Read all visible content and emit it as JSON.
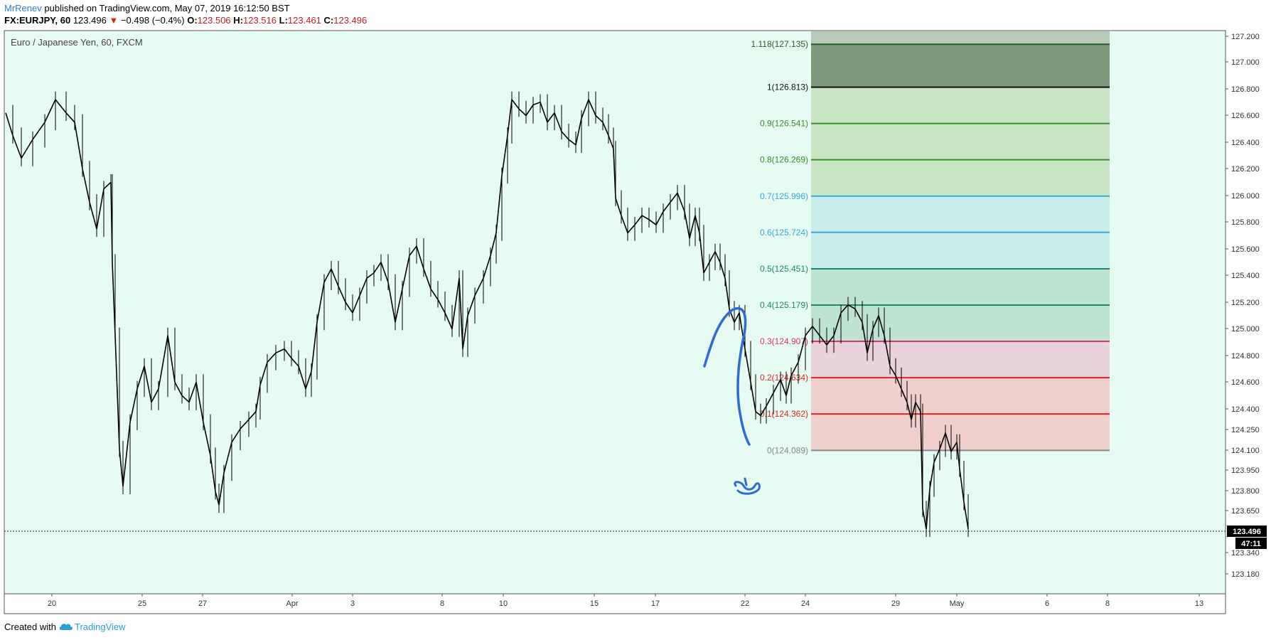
{
  "header": {
    "user": "MrRenev",
    "published": "published on TradingView.com, May 07, 2019 16:12:50 BST",
    "symbol": "FX:EURJPY, 60",
    "last": "123.496",
    "down_arrow": "▼",
    "change": "−0.498 (−0.4%)",
    "o_label": "O:",
    "o_value": "123.506",
    "h_label": "H:",
    "h_value": "123.516",
    "l_label": "L:",
    "l_value": "123.461",
    "c_label": "C:",
    "c_value": "123.496"
  },
  "footer": {
    "created_with": "Created with",
    "brand": "TradingView",
    "logo_icon": "tradingview-cloud-icon"
  },
  "colors": {
    "plot_bg": "#e6fbf2",
    "candle": "#000000",
    "user_link": "#2a7de1",
    "down": "#e01b1b",
    "drawing": "#2e6bd6"
  },
  "chart_data": {
    "type": "candlestick",
    "title": "Euro / Japanese Yen, 60, FXCM",
    "xlabel": "",
    "ylabel": "",
    "ylim": [
      123.05,
      127.25
    ],
    "x_ticks": [
      "20",
      "25",
      "27",
      "Apr",
      "3",
      "8",
      "10",
      "15",
      "17",
      "22",
      "24",
      "29",
      "May",
      "6",
      "8",
      "13"
    ],
    "y_ticks": [
      "127.200",
      "127.000",
      "126.800",
      "126.600",
      "126.400",
      "126.200",
      "126.000",
      "125.800",
      "125.600",
      "125.400",
      "125.200",
      "125.000",
      "124.800",
      "124.600",
      "124.400",
      "124.250",
      "124.100",
      "123.950",
      "123.800",
      "123.650",
      "123.340",
      "123.180"
    ],
    "last_price": "123.496",
    "countdown": "47:11",
    "price_path": [
      [
        0,
        126.62
      ],
      [
        10,
        126.45
      ],
      [
        22,
        126.28
      ],
      [
        38,
        126.42
      ],
      [
        55,
        126.55
      ],
      [
        70,
        126.72
      ],
      [
        85,
        126.62
      ],
      [
        97,
        126.55
      ],
      [
        108,
        126.2
      ],
      [
        118,
        125.95
      ],
      [
        128,
        125.75
      ],
      [
        138,
        126.05
      ],
      [
        148,
        126.1
      ],
      [
        150,
        125.5
      ],
      [
        154,
        124.95
      ],
      [
        160,
        124.1
      ],
      [
        165,
        123.82
      ],
      [
        175,
        124.3
      ],
      [
        185,
        124.55
      ],
      [
        195,
        124.72
      ],
      [
        205,
        124.45
      ],
      [
        215,
        124.55
      ],
      [
        228,
        124.95
      ],
      [
        238,
        124.6
      ],
      [
        248,
        124.5
      ],
      [
        258,
        124.45
      ],
      [
        268,
        124.6
      ],
      [
        278,
        124.3
      ],
      [
        288,
        124.05
      ],
      [
        295,
        123.78
      ],
      [
        300,
        123.68
      ],
      [
        307,
        123.92
      ],
      [
        318,
        124.15
      ],
      [
        330,
        124.25
      ],
      [
        342,
        124.32
      ],
      [
        352,
        124.38
      ],
      [
        358,
        124.58
      ],
      [
        368,
        124.75
      ],
      [
        380,
        124.82
      ],
      [
        392,
        124.85
      ],
      [
        402,
        124.78
      ],
      [
        412,
        124.72
      ],
      [
        422,
        124.55
      ],
      [
        430,
        124.68
      ],
      [
        438,
        125.05
      ],
      [
        448,
        125.35
      ],
      [
        458,
        125.45
      ],
      [
        468,
        125.32
      ],
      [
        478,
        125.2
      ],
      [
        488,
        125.12
      ],
      [
        498,
        125.25
      ],
      [
        508,
        125.38
      ],
      [
        518,
        125.42
      ],
      [
        528,
        125.5
      ],
      [
        538,
        125.35
      ],
      [
        548,
        125.05
      ],
      [
        558,
        125.3
      ],
      [
        568,
        125.55
      ],
      [
        578,
        125.62
      ],
      [
        588,
        125.45
      ],
      [
        598,
        125.3
      ],
      [
        608,
        125.22
      ],
      [
        618,
        125.12
      ],
      [
        628,
        125.0
      ],
      [
        638,
        125.38
      ],
      [
        643,
        124.85
      ],
      [
        650,
        125.1
      ],
      [
        660,
        125.25
      ],
      [
        672,
        125.38
      ],
      [
        682,
        125.55
      ],
      [
        690,
        125.72
      ],
      [
        698,
        126.15
      ],
      [
        706,
        126.45
      ],
      [
        712,
        126.72
      ],
      [
        722,
        126.65
      ],
      [
        732,
        126.6
      ],
      [
        742,
        126.68
      ],
      [
        752,
        126.7
      ],
      [
        762,
        126.55
      ],
      [
        772,
        126.62
      ],
      [
        782,
        126.48
      ],
      [
        792,
        126.42
      ],
      [
        802,
        126.38
      ],
      [
        810,
        126.58
      ],
      [
        820,
        126.72
      ],
      [
        830,
        126.6
      ],
      [
        840,
        126.55
      ],
      [
        848,
        126.45
      ],
      [
        855,
        126.35
      ],
      [
        858,
        125.98
      ],
      [
        866,
        125.85
      ],
      [
        875,
        125.72
      ],
      [
        885,
        125.78
      ],
      [
        895,
        125.85
      ],
      [
        905,
        125.82
      ],
      [
        915,
        125.78
      ],
      [
        925,
        125.88
      ],
      [
        935,
        125.95
      ],
      [
        945,
        126.02
      ],
      [
        955,
        125.88
      ],
      [
        962,
        125.68
      ],
      [
        970,
        125.85
      ],
      [
        976,
        125.72
      ],
      [
        982,
        125.42
      ],
      [
        990,
        125.5
      ],
      [
        998,
        125.58
      ],
      [
        1005,
        125.5
      ],
      [
        1012,
        125.38
      ],
      [
        1018,
        125.15
      ],
      [
        1025,
        125.05
      ],
      [
        1032,
        125.12
      ],
      [
        1040,
        124.85
      ],
      [
        1048,
        124.6
      ],
      [
        1055,
        124.38
      ],
      [
        1062,
        124.35
      ],
      [
        1070,
        124.42
      ],
      [
        1080,
        124.52
      ],
      [
        1090,
        124.62
      ],
      [
        1098,
        124.5
      ],
      [
        1105,
        124.65
      ],
      [
        1115,
        124.75
      ],
      [
        1125,
        124.95
      ],
      [
        1135,
        125.02
      ],
      [
        1145,
        124.95
      ],
      [
        1155,
        124.88
      ],
      [
        1165,
        124.95
      ],
      [
        1175,
        125.12
      ],
      [
        1185,
        125.18
      ],
      [
        1195,
        125.15
      ],
      [
        1205,
        125.05
      ],
      [
        1212,
        124.82
      ],
      [
        1220,
        125.0
      ],
      [
        1228,
        125.1
      ],
      [
        1236,
        124.95
      ],
      [
        1244,
        124.72
      ],
      [
        1252,
        124.65
      ],
      [
        1260,
        124.55
      ],
      [
        1268,
        124.45
      ],
      [
        1274,
        124.32
      ],
      [
        1280,
        124.45
      ],
      [
        1287,
        124.38
      ],
      [
        1290,
        123.65
      ],
      [
        1295,
        123.5
      ],
      [
        1300,
        123.8
      ],
      [
        1306,
        124.0
      ],
      [
        1314,
        124.1
      ],
      [
        1322,
        124.22
      ],
      [
        1330,
        124.08
      ],
      [
        1338,
        124.15
      ],
      [
        1342,
        123.95
      ],
      [
        1348,
        123.7
      ],
      [
        1354,
        123.5
      ]
    ],
    "fibonacci": [
      {
        "level": "1.118",
        "price": 127.135,
        "label": "1.118(127.135)",
        "color": "#2b5a2b",
        "fill": "#7a9a7a"
      },
      {
        "level": "1",
        "price": 126.813,
        "label": "1(126.813)",
        "color": "#111111",
        "fill": "#c9e6c4"
      },
      {
        "level": "0.9",
        "price": 126.541,
        "label": "0.9(126.541)",
        "color": "#3d8a2e",
        "fill": "#c9e6c4"
      },
      {
        "level": "0.8",
        "price": 126.269,
        "label": "0.8(126.269)",
        "color": "#3d8a2e",
        "fill": "#c9e6c4"
      },
      {
        "level": "0.7",
        "price": 125.996,
        "label": "0.7(125.996)",
        "color": "#37a8d8",
        "fill": "#c9ecea"
      },
      {
        "level": "0.6",
        "price": 125.724,
        "label": "0.6(125.724)",
        "color": "#37a8d8",
        "fill": "#c9ecea"
      },
      {
        "level": "0.5",
        "price": 125.451,
        "label": "0.5(125.451)",
        "color": "#1c8a6a",
        "fill": "#bfe3d3"
      },
      {
        "level": "0.4",
        "price": 125.179,
        "label": "0.4(125.179)",
        "color": "#1c8a6a",
        "fill": "#bfe3d3"
      },
      {
        "level": "0.3",
        "price": 124.907,
        "label": "0.3(124.907)",
        "color": "#e0307a",
        "fill": "#ead2dd"
      },
      {
        "level": "0.2",
        "price": 124.634,
        "label": "0.2(124.634)",
        "color": "#e02424",
        "fill": "#efd0cc"
      },
      {
        "level": "0.1",
        "price": 124.362,
        "label": "0.1(124.362)",
        "color": "#e02424",
        "fill": "#efd0cc"
      },
      {
        "level": "0",
        "price": 124.089,
        "label": "0(124.089)",
        "color": "#888888",
        "fill": "#efd0cc"
      }
    ]
  }
}
